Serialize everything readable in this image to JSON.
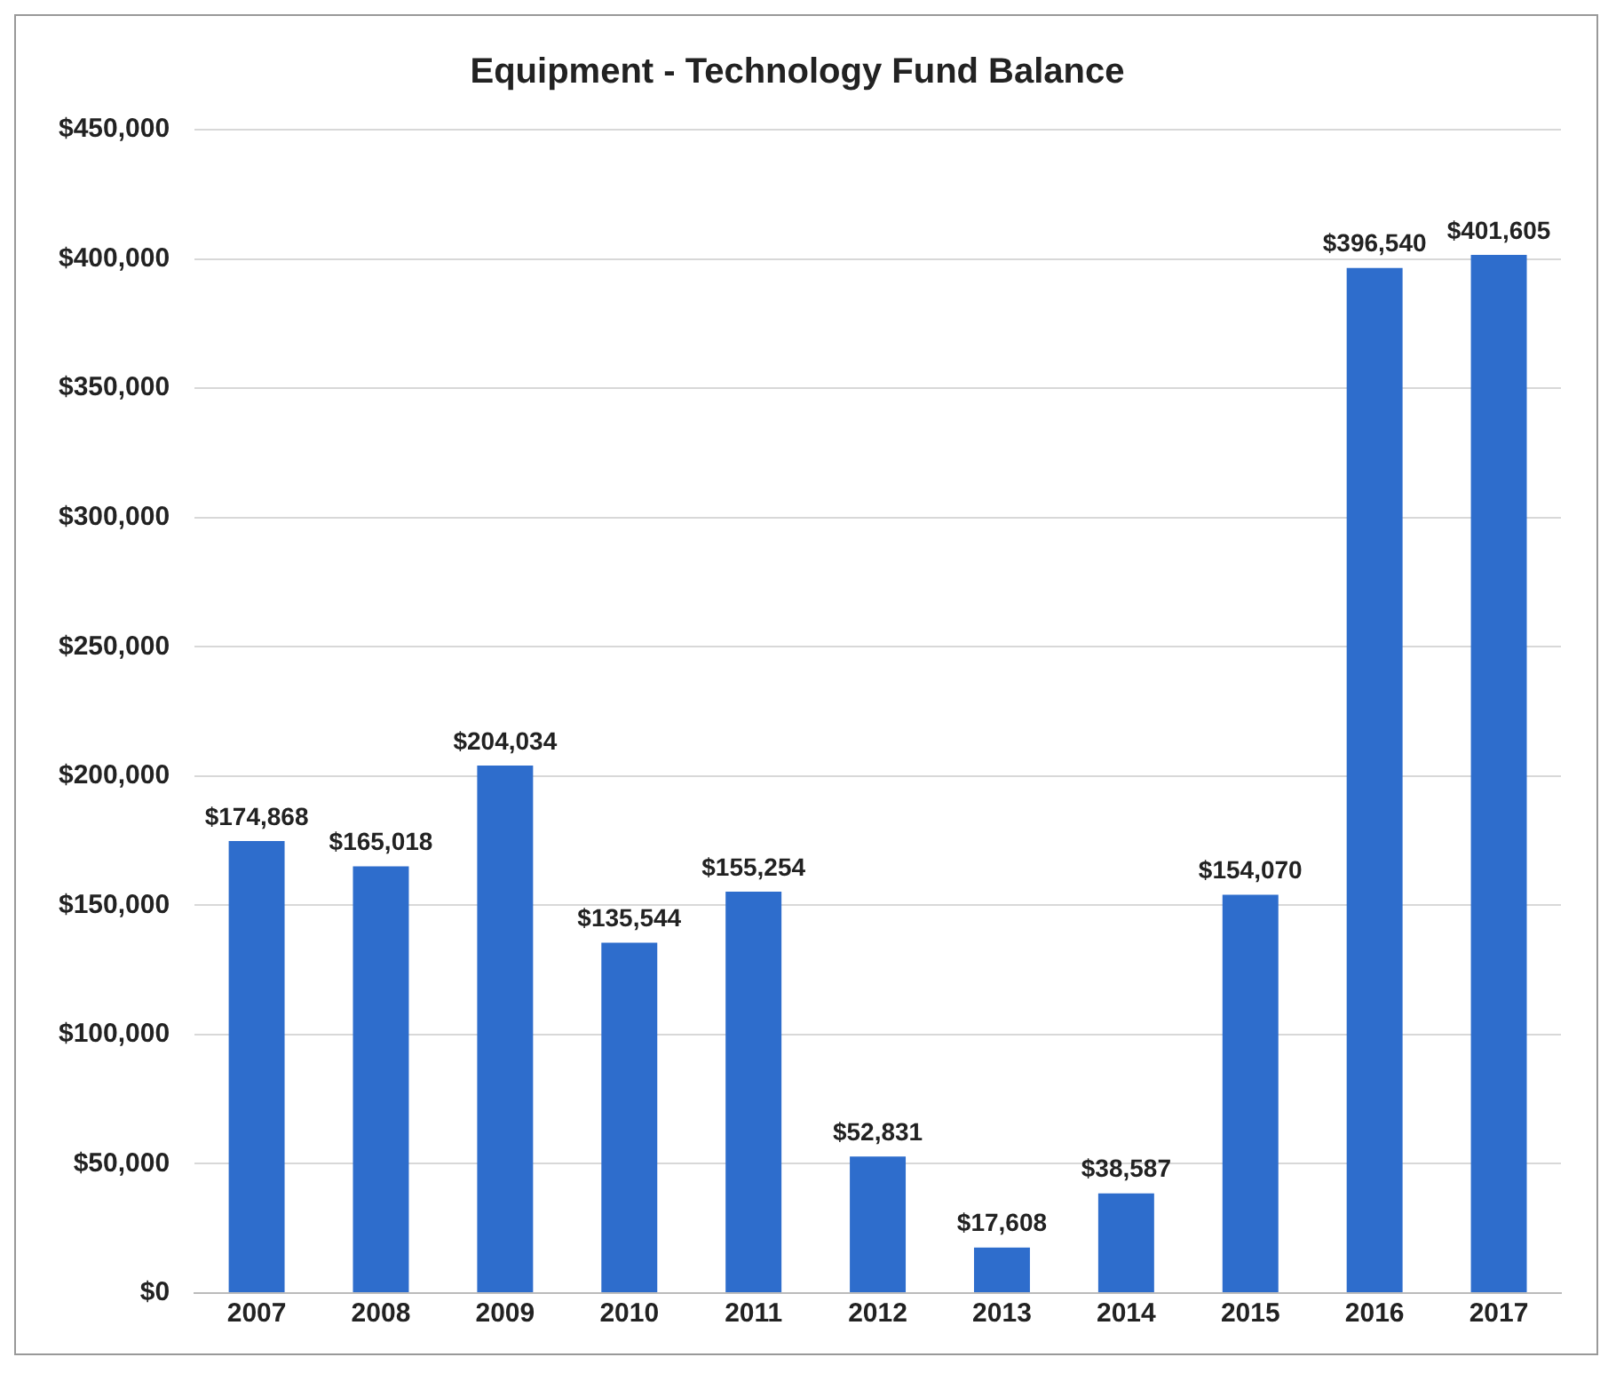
{
  "chart_data": {
    "type": "bar",
    "title": "Equipment - Technology Fund Balance",
    "categories": [
      "2007",
      "2008",
      "2009",
      "2010",
      "2011",
      "2012",
      "2013",
      "2014",
      "2015",
      "2016",
      "2017"
    ],
    "values": [
      174868,
      165018,
      204034,
      135544,
      155254,
      52831,
      17608,
      38587,
      154070,
      396540,
      401605
    ],
    "value_labels": [
      "$174,868",
      "$165,018",
      "$204,034",
      "$135,544",
      "$155,254",
      "$52,831",
      "$17,608",
      "$38,587",
      "$154,070",
      "$396,540",
      "$401,605"
    ],
    "color": "#2e6dcc",
    "ylim": [
      0,
      450000
    ],
    "yticks": [
      {
        "value": 0,
        "label": "$0"
      },
      {
        "value": 50000,
        "label": "$50,000"
      },
      {
        "value": 100000,
        "label": "$100,000"
      },
      {
        "value": 150000,
        "label": "$150,000"
      },
      {
        "value": 200000,
        "label": "$200,000"
      },
      {
        "value": 250000,
        "label": "$250,000"
      },
      {
        "value": 300000,
        "label": "$300,000"
      },
      {
        "value": 350000,
        "label": "$350,000"
      },
      {
        "value": 400000,
        "label": "$400,000"
      },
      {
        "value": 450000,
        "label": "$450,000"
      }
    ],
    "grid": "y"
  }
}
